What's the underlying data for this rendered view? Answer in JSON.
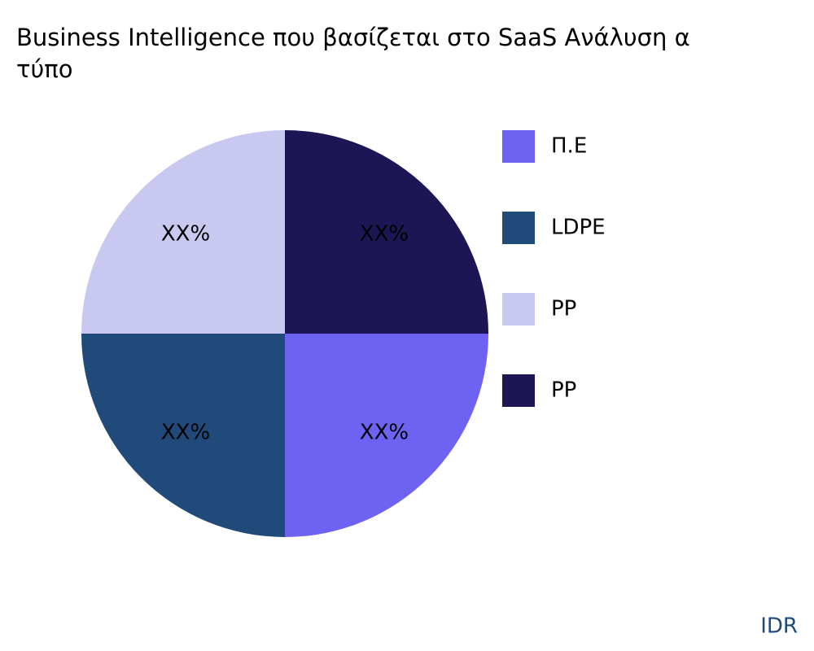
{
  "chart_data": {
    "type": "pie",
    "title": [
      "Business Intelligence που βασίζεται στο SaaS Ανάλυση α",
      "τύπο"
    ],
    "categories": [
      "Π.Ε",
      "LDPE",
      "PP",
      "PP"
    ],
    "values": [
      25,
      25,
      25,
      25
    ],
    "value_labels": [
      "XX%",
      "XX%",
      "XX%",
      "XX%"
    ],
    "colors": [
      "#6e62f3",
      "#1f4a7a",
      "#c8c8f0",
      "#1c1655"
    ],
    "legend": "right",
    "source": "IDR"
  }
}
